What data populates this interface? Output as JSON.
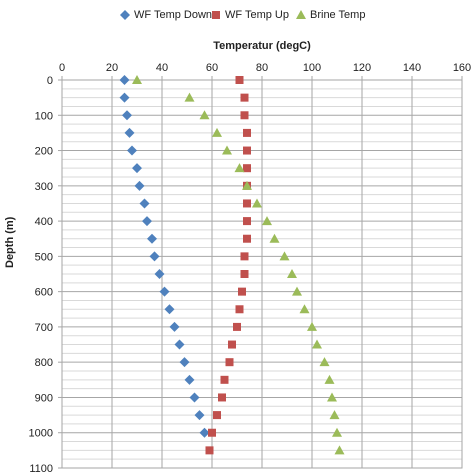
{
  "chart_data": {
    "type": "scatter",
    "title": "",
    "xlabel": "Temperatur (degC)",
    "ylabel": "Depth (m)",
    "xlim": [
      0,
      160
    ],
    "ylim": [
      1100,
      0
    ],
    "y_reversed": true,
    "x_axis_position": "top",
    "xticks": [
      "0",
      "20",
      "40",
      "60",
      "80",
      "100",
      "120",
      "140",
      "160"
    ],
    "yticks": [
      "0",
      "100",
      "200",
      "300",
      "400",
      "500",
      "600",
      "700",
      "800",
      "900",
      "1000",
      "1100"
    ],
    "grid": true,
    "legend_position": "top",
    "series": [
      {
        "name": "WF Temp Down",
        "marker": "diamond",
        "color": "#4f81bd",
        "points": [
          {
            "x": 25,
            "y": 0
          },
          {
            "x": 25,
            "y": 50
          },
          {
            "x": 26,
            "y": 100
          },
          {
            "x": 27,
            "y": 150
          },
          {
            "x": 28,
            "y": 200
          },
          {
            "x": 30,
            "y": 250
          },
          {
            "x": 31,
            "y": 300
          },
          {
            "x": 33,
            "y": 350
          },
          {
            "x": 34,
            "y": 400
          },
          {
            "x": 36,
            "y": 450
          },
          {
            "x": 37,
            "y": 500
          },
          {
            "x": 39,
            "y": 550
          },
          {
            "x": 41,
            "y": 600
          },
          {
            "x": 43,
            "y": 650
          },
          {
            "x": 45,
            "y": 700
          },
          {
            "x": 47,
            "y": 750
          },
          {
            "x": 49,
            "y": 800
          },
          {
            "x": 51,
            "y": 850
          },
          {
            "x": 53,
            "y": 900
          },
          {
            "x": 55,
            "y": 950
          },
          {
            "x": 57,
            "y": 1000
          }
        ]
      },
      {
        "name": "WF Temp Up",
        "marker": "square",
        "color": "#c0504d",
        "points": [
          {
            "x": 71,
            "y": 0
          },
          {
            "x": 73,
            "y": 50
          },
          {
            "x": 73,
            "y": 100
          },
          {
            "x": 74,
            "y": 150
          },
          {
            "x": 74,
            "y": 200
          },
          {
            "x": 74,
            "y": 250
          },
          {
            "x": 74,
            "y": 300
          },
          {
            "x": 74,
            "y": 350
          },
          {
            "x": 74,
            "y": 400
          },
          {
            "x": 74,
            "y": 450
          },
          {
            "x": 73,
            "y": 500
          },
          {
            "x": 73,
            "y": 550
          },
          {
            "x": 72,
            "y": 600
          },
          {
            "x": 71,
            "y": 650
          },
          {
            "x": 70,
            "y": 700
          },
          {
            "x": 68,
            "y": 750
          },
          {
            "x": 67,
            "y": 800
          },
          {
            "x": 65,
            "y": 850
          },
          {
            "x": 64,
            "y": 900
          },
          {
            "x": 62,
            "y": 950
          },
          {
            "x": 60,
            "y": 1000
          },
          {
            "x": 59,
            "y": 1050
          }
        ]
      },
      {
        "name": "Brine Temp",
        "marker": "triangle",
        "color": "#9bbb59",
        "points": [
          {
            "x": 30,
            "y": 0
          },
          {
            "x": 51,
            "y": 50
          },
          {
            "x": 57,
            "y": 100
          },
          {
            "x": 62,
            "y": 150
          },
          {
            "x": 66,
            "y": 200
          },
          {
            "x": 71,
            "y": 250
          },
          {
            "x": 74,
            "y": 300
          },
          {
            "x": 78,
            "y": 350
          },
          {
            "x": 82,
            "y": 400
          },
          {
            "x": 85,
            "y": 450
          },
          {
            "x": 89,
            "y": 500
          },
          {
            "x": 92,
            "y": 550
          },
          {
            "x": 94,
            "y": 600
          },
          {
            "x": 97,
            "y": 650
          },
          {
            "x": 100,
            "y": 700
          },
          {
            "x": 102,
            "y": 750
          },
          {
            "x": 105,
            "y": 800
          },
          {
            "x": 107,
            "y": 850
          },
          {
            "x": 108,
            "y": 900
          },
          {
            "x": 109,
            "y": 950
          },
          {
            "x": 110,
            "y": 1000
          },
          {
            "x": 111,
            "y": 1050
          }
        ]
      }
    ]
  }
}
